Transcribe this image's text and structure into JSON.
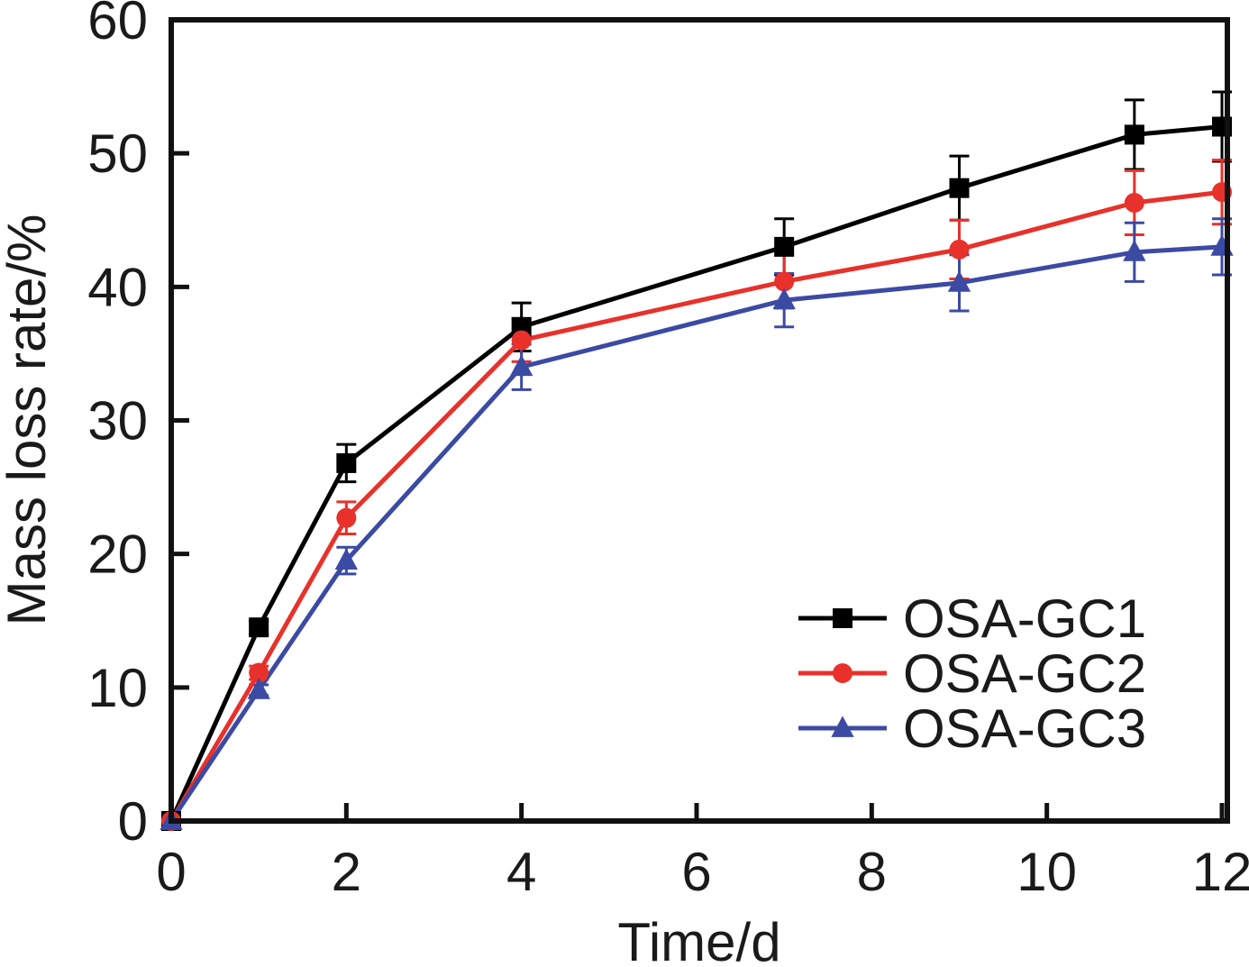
{
  "chart_data": {
    "type": "line",
    "title": "",
    "xlabel": "Time/d",
    "ylabel": "Mass loss rate/%",
    "xlim": [
      0,
      12
    ],
    "ylim": [
      0,
      60
    ],
    "x_ticks": [
      0,
      2,
      4,
      6,
      8,
      10,
      12
    ],
    "y_ticks": [
      0,
      10,
      20,
      30,
      40,
      50,
      60
    ],
    "x_tick_labels": [
      "0",
      "2",
      "4",
      "6",
      "8",
      "10",
      "12"
    ],
    "y_tick_labels": [
      "0",
      "10",
      "20",
      "30",
      "40",
      "50",
      "60"
    ],
    "grid": false,
    "legend_position": "bottom-right",
    "x": [
      0,
      1,
      2,
      4,
      7,
      9,
      11,
      12
    ],
    "series": [
      {
        "name": "OSA-GC1",
        "color": "#000000",
        "marker": "square",
        "values": [
          0,
          14.5,
          26.8,
          37.0,
          43.0,
          47.4,
          51.4,
          52.0
        ],
        "errors": [
          0,
          0.5,
          1.4,
          1.8,
          2.1,
          2.4,
          2.6,
          2.6
        ]
      },
      {
        "name": "OSA-GC2",
        "color": "#e8312a",
        "marker": "circle",
        "values": [
          0,
          11.1,
          22.7,
          36.0,
          40.4,
          42.8,
          46.3,
          47.1
        ],
        "errors": [
          0,
          0.5,
          1.2,
          1.6,
          2.0,
          2.2,
          2.4,
          2.4
        ]
      },
      {
        "name": "OSA-GC3",
        "color": "#3b4aa3",
        "marker": "triangle",
        "values": [
          0,
          9.8,
          19.5,
          34.0,
          39.0,
          40.3,
          42.6,
          43.0
        ],
        "errors": [
          0,
          0.4,
          1.0,
          1.7,
          2.0,
          2.1,
          2.2,
          2.1
        ]
      }
    ]
  }
}
